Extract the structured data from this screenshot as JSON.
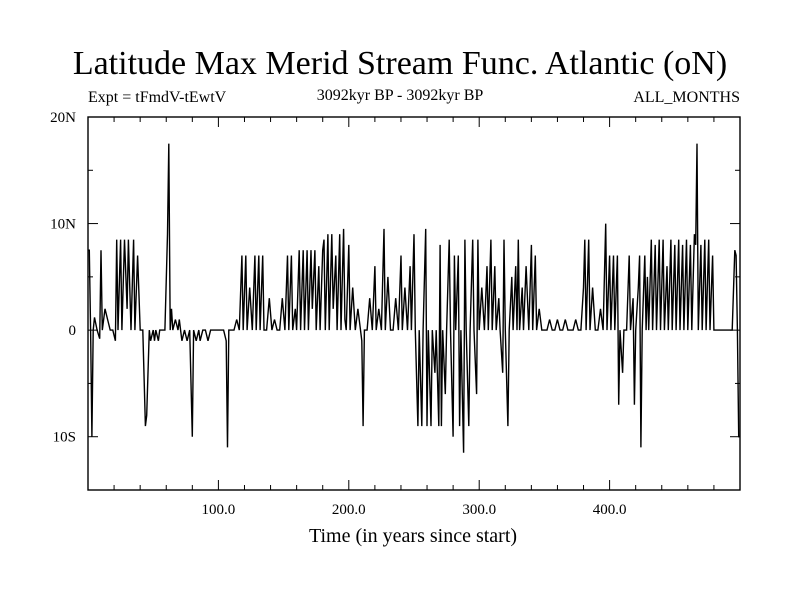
{
  "chart_data": {
    "type": "line",
    "title": "Latitude Max Merid Stream Func. Atlantic (oN)",
    "subtitle_left": "Expt = tFmdV-tEwtV",
    "subtitle_center": "3092kyr BP - 3092kyr BP",
    "subtitle_right": "ALL_MONTHS",
    "xlabel": "Time (in years since start)",
    "ylabel": "",
    "xlim": [
      0,
      500
    ],
    "ylim": [
      -15,
      20
    ],
    "x_ticks": [
      {
        "value": 100,
        "label": "100.0"
      },
      {
        "value": 200,
        "label": "200.0"
      },
      {
        "value": 300,
        "label": "300.0"
      },
      {
        "value": 400,
        "label": "400.0"
      }
    ],
    "y_ticks": [
      {
        "value": 20,
        "label": "20N"
      },
      {
        "value": 10,
        "label": "10N"
      },
      {
        "value": 0,
        "label": "0"
      },
      {
        "value": -10,
        "label": "10S"
      }
    ],
    "grid": false,
    "series": [
      {
        "points": [
          [
            0,
            7.5
          ],
          [
            1,
            7.5
          ],
          [
            2,
            0
          ],
          [
            3,
            -10
          ],
          [
            4,
            0
          ],
          [
            5,
            1.2
          ],
          [
            7,
            0
          ],
          [
            9,
            -0.8
          ],
          [
            10,
            7.5
          ],
          [
            11,
            0
          ],
          [
            13,
            2
          ],
          [
            15,
            1
          ],
          [
            17,
            0
          ],
          [
            19,
            0
          ],
          [
            21,
            -1
          ],
          [
            22,
            8.5
          ],
          [
            23,
            0
          ],
          [
            25,
            8.5
          ],
          [
            26,
            0
          ],
          [
            28,
            8.5
          ],
          [
            30,
            2
          ],
          [
            31,
            8.5
          ],
          [
            33,
            0
          ],
          [
            35,
            8.5
          ],
          [
            36,
            0
          ],
          [
            38,
            7
          ],
          [
            40,
            0
          ],
          [
            42,
            0
          ],
          [
            44,
            -9
          ],
          [
            45,
            -8
          ],
          [
            47,
            0
          ],
          [
            48,
            -1
          ],
          [
            50,
            0
          ],
          [
            51,
            -1
          ],
          [
            52,
            0
          ],
          [
            54,
            -1
          ],
          [
            55,
            0
          ],
          [
            57,
            0
          ],
          [
            59,
            0
          ],
          [
            61,
            9
          ],
          [
            62,
            17.5
          ],
          [
            63,
            0
          ],
          [
            64,
            2
          ],
          [
            65,
            0
          ],
          [
            67,
            1
          ],
          [
            69,
            0
          ],
          [
            70,
            1
          ],
          [
            72,
            -1
          ],
          [
            74,
            0
          ],
          [
            76,
            -1
          ],
          [
            78,
            0
          ],
          [
            80,
            -10
          ],
          [
            81,
            0
          ],
          [
            83,
            -1
          ],
          [
            85,
            0
          ],
          [
            86,
            -1
          ],
          [
            88,
            0
          ],
          [
            90,
            0
          ],
          [
            92,
            -1
          ],
          [
            94,
            0
          ],
          [
            96,
            0
          ],
          [
            98,
            0
          ],
          [
            100,
            0
          ],
          [
            102,
            0
          ],
          [
            104,
            0
          ],
          [
            106,
            -1
          ],
          [
            107,
            -11
          ],
          [
            108,
            0
          ],
          [
            110,
            0
          ],
          [
            112,
            0
          ],
          [
            114,
            1
          ],
          [
            116,
            0
          ],
          [
            118,
            7
          ],
          [
            119,
            0
          ],
          [
            121,
            7
          ],
          [
            122,
            0
          ],
          [
            124,
            4
          ],
          [
            126,
            0
          ],
          [
            128,
            7
          ],
          [
            129,
            0
          ],
          [
            131,
            7
          ],
          [
            132,
            0
          ],
          [
            134,
            7
          ],
          [
            135,
            0
          ],
          [
            137,
            0
          ],
          [
            139,
            3
          ],
          [
            141,
            0
          ],
          [
            143,
            1
          ],
          [
            145,
            0
          ],
          [
            147,
            0
          ],
          [
            149,
            3
          ],
          [
            151,
            0
          ],
          [
            153,
            7
          ],
          [
            154,
            0
          ],
          [
            156,
            7
          ],
          [
            157,
            0
          ],
          [
            159,
            2
          ],
          [
            160,
            0
          ],
          [
            162,
            7.5
          ],
          [
            163,
            0
          ],
          [
            165,
            7.5
          ],
          [
            166,
            0
          ],
          [
            168,
            7.5
          ],
          [
            169,
            0
          ],
          [
            171,
            7.5
          ],
          [
            172,
            2
          ],
          [
            174,
            7.5
          ],
          [
            175,
            0
          ],
          [
            177,
            6
          ],
          [
            178,
            0
          ],
          [
            180,
            7.5
          ],
          [
            181,
            8.5
          ],
          [
            182,
            0
          ],
          [
            184,
            9
          ],
          [
            185,
            0
          ],
          [
            187,
            9
          ],
          [
            188,
            2
          ],
          [
            190,
            7
          ],
          [
            191,
            0
          ],
          [
            193,
            9
          ],
          [
            194,
            0
          ],
          [
            196,
            9.5
          ],
          [
            197,
            1
          ],
          [
            198,
            0
          ],
          [
            200,
            8
          ],
          [
            201,
            0
          ],
          [
            203,
            4
          ],
          [
            205,
            0
          ],
          [
            207,
            2
          ],
          [
            209,
            0
          ],
          [
            210,
            -1
          ],
          [
            211,
            -9
          ],
          [
            212,
            0
          ],
          [
            214,
            0
          ],
          [
            216,
            3
          ],
          [
            218,
            0
          ],
          [
            220,
            6
          ],
          [
            221,
            0
          ],
          [
            223,
            2
          ],
          [
            225,
            0
          ],
          [
            227,
            9.5
          ],
          [
            228,
            0
          ],
          [
            230,
            5
          ],
          [
            232,
            0
          ],
          [
            234,
            0
          ],
          [
            236,
            3
          ],
          [
            238,
            0
          ],
          [
            240,
            7
          ],
          [
            241,
            0
          ],
          [
            243,
            4
          ],
          [
            245,
            0
          ],
          [
            247,
            6
          ],
          [
            248,
            0
          ],
          [
            250,
            9
          ],
          [
            251,
            0
          ],
          [
            253,
            -9
          ],
          [
            254,
            0
          ],
          [
            256,
            -9
          ],
          [
            257,
            0
          ],
          [
            259,
            9.5
          ],
          [
            260,
            -9
          ],
          [
            261,
            0
          ],
          [
            263,
            -9
          ],
          [
            264,
            0
          ],
          [
            266,
            -4
          ],
          [
            267,
            0
          ],
          [
            269,
            -9
          ],
          [
            270,
            8
          ],
          [
            271,
            -9
          ],
          [
            272,
            0
          ],
          [
            274,
            -6
          ],
          [
            275,
            0
          ],
          [
            277,
            8.5
          ],
          [
            278,
            0
          ],
          [
            280,
            -10
          ],
          [
            281,
            7
          ],
          [
            282,
            0
          ],
          [
            284,
            7
          ],
          [
            285,
            -9
          ],
          [
            286,
            0
          ],
          [
            288,
            -11.5
          ],
          [
            289,
            8.5
          ],
          [
            290,
            0
          ],
          [
            292,
            -9
          ],
          [
            293,
            0
          ],
          [
            295,
            8.5
          ],
          [
            296,
            0
          ],
          [
            298,
            -6
          ],
          [
            299,
            8.5
          ],
          [
            300,
            0
          ],
          [
            302,
            4
          ],
          [
            304,
            0
          ],
          [
            306,
            6
          ],
          [
            307,
            0
          ],
          [
            309,
            8.5
          ],
          [
            310,
            0
          ],
          [
            312,
            6
          ],
          [
            313,
            0
          ],
          [
            315,
            3
          ],
          [
            316,
            0
          ],
          [
            318,
            -4
          ],
          [
            319,
            8.5
          ],
          [
            320,
            0
          ],
          [
            322,
            -9
          ],
          [
            323,
            0
          ],
          [
            325,
            5
          ],
          [
            326,
            0
          ],
          [
            328,
            6
          ],
          [
            329,
            0
          ],
          [
            330,
            8.5
          ],
          [
            331,
            0
          ],
          [
            333,
            4
          ],
          [
            334,
            0
          ],
          [
            336,
            6
          ],
          [
            338,
            0
          ],
          [
            340,
            8
          ],
          [
            341,
            0
          ],
          [
            343,
            7
          ],
          [
            344,
            0
          ],
          [
            346,
            2
          ],
          [
            348,
            0
          ],
          [
            350,
            0
          ],
          [
            352,
            0
          ],
          [
            354,
            1
          ],
          [
            356,
            0
          ],
          [
            358,
            0
          ],
          [
            360,
            1
          ],
          [
            362,
            0
          ],
          [
            364,
            0
          ],
          [
            366,
            1
          ],
          [
            368,
            0
          ],
          [
            370,
            0
          ],
          [
            372,
            0
          ],
          [
            374,
            1
          ],
          [
            376,
            0
          ],
          [
            378,
            0
          ],
          [
            380,
            4
          ],
          [
            381,
            8.5
          ],
          [
            382,
            0
          ],
          [
            384,
            8.5
          ],
          [
            385,
            0
          ],
          [
            387,
            4
          ],
          [
            389,
            0
          ],
          [
            391,
            0
          ],
          [
            393,
            2
          ],
          [
            395,
            0
          ],
          [
            397,
            10
          ],
          [
            398,
            0
          ],
          [
            400,
            7
          ],
          [
            401,
            0
          ],
          [
            403,
            7
          ],
          [
            404,
            0
          ],
          [
            406,
            7
          ],
          [
            407,
            -7
          ],
          [
            408,
            0
          ],
          [
            410,
            -4
          ],
          [
            411,
            0
          ],
          [
            413,
            0
          ],
          [
            415,
            7
          ],
          [
            416,
            0
          ],
          [
            418,
            3
          ],
          [
            419,
            -7
          ],
          [
            420,
            0
          ],
          [
            422,
            4
          ],
          [
            423,
            7
          ],
          [
            424,
            -11
          ],
          [
            425,
            0
          ],
          [
            427,
            7
          ],
          [
            428,
            0
          ],
          [
            429,
            5
          ],
          [
            430,
            0
          ],
          [
            432,
            8.5
          ],
          [
            433,
            0
          ],
          [
            435,
            8
          ],
          [
            436,
            0
          ],
          [
            438,
            8.5
          ],
          [
            439,
            0
          ],
          [
            441,
            8.5
          ],
          [
            442,
            0
          ],
          [
            444,
            6
          ],
          [
            445,
            0
          ],
          [
            447,
            8.5
          ],
          [
            448,
            0
          ],
          [
            450,
            8
          ],
          [
            451,
            0
          ],
          [
            453,
            8.5
          ],
          [
            454,
            0
          ],
          [
            456,
            8
          ],
          [
            457,
            0
          ],
          [
            459,
            8.5
          ],
          [
            460,
            0
          ],
          [
            462,
            8
          ],
          [
            463,
            0
          ],
          [
            465,
            9
          ],
          [
            466,
            8
          ],
          [
            467,
            17.5
          ],
          [
            468,
            0
          ],
          [
            470,
            8
          ],
          [
            471,
            0
          ],
          [
            473,
            8.5
          ],
          [
            474,
            0
          ],
          [
            476,
            8.5
          ],
          [
            477,
            0
          ],
          [
            479,
            7
          ],
          [
            480,
            0
          ],
          [
            482,
            0
          ],
          [
            484,
            0
          ],
          [
            486,
            0
          ],
          [
            488,
            0
          ],
          [
            490,
            0
          ],
          [
            492,
            0
          ],
          [
            494,
            0
          ],
          [
            496,
            7.5
          ],
          [
            497,
            7
          ],
          [
            498,
            0
          ],
          [
            499,
            -10
          ],
          [
            500,
            -10
          ]
        ]
      }
    ]
  }
}
